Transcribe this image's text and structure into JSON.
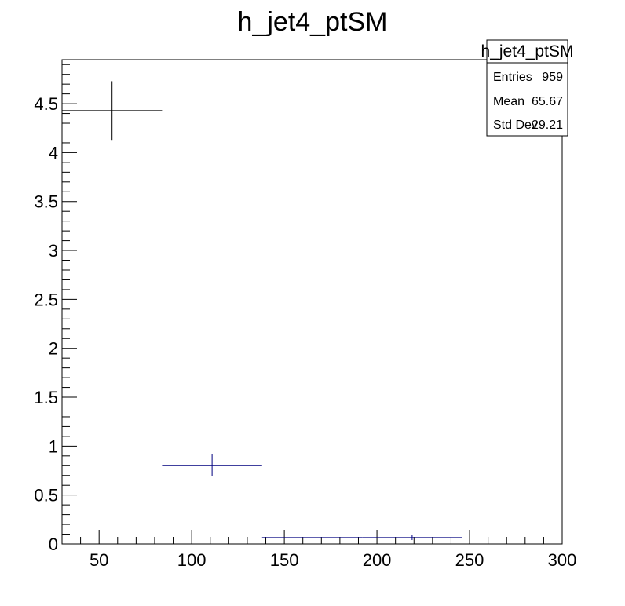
{
  "chart_data": {
    "type": "scatter",
    "title": "h_jet4_ptSM",
    "xlabel": "",
    "ylabel": "",
    "xlim": [
      30,
      300
    ],
    "ylim": [
      0,
      4.95
    ],
    "x_ticks": [
      50,
      100,
      150,
      200,
      250,
      300
    ],
    "y_ticks": [
      0,
      0.5,
      1,
      1.5,
      2,
      2.5,
      3,
      3.5,
      4,
      4.5
    ],
    "y_tick_labels": [
      "0",
      "0.5",
      "1",
      "1.5",
      "2",
      "2.5",
      "3",
      "3.5",
      "4",
      "4.5"
    ],
    "grid": false,
    "series": [
      {
        "color": "#000000",
        "points": [
          {
            "x": 57,
            "y": 4.43,
            "xlow": 30,
            "xhigh": 84,
            "ylow": 4.13,
            "yhigh": 4.73
          }
        ]
      },
      {
        "color": "#00007f",
        "points": [
          {
            "x": 111,
            "y": 0.8,
            "xlow": 84,
            "xhigh": 138,
            "ylow": 0.69,
            "yhigh": 0.92
          },
          {
            "x": 165,
            "y": 0.065,
            "xlow": 138,
            "xhigh": 192,
            "ylow": 0.04,
            "yhigh": 0.09
          },
          {
            "x": 219,
            "y": 0.065,
            "xlow": 192,
            "xhigh": 246,
            "ylow": 0.04,
            "yhigh": 0.09
          }
        ]
      }
    ],
    "stats_box": {
      "title": "h_jet4_ptSM",
      "rows": [
        {
          "label": "Entries",
          "value": "959"
        },
        {
          "label": "Mean",
          "value": "65.67"
        },
        {
          "label": "Std Dev",
          "value": "29.21"
        }
      ],
      "placement": "top-right"
    }
  }
}
